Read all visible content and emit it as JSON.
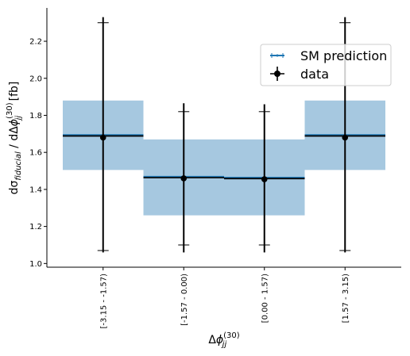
{
  "chart_data": {
    "type": "bar",
    "categories": [
      "[-3.15 - -1.57)",
      "[-1.57 - 0.00)",
      "[0.00 - 1.57)",
      "[1.57 - 3.15)"
    ],
    "series": [
      {
        "name": "SM prediction",
        "kind": "band",
        "central": [
          1.69,
          1.465,
          1.46,
          1.69
        ],
        "low": [
          1.505,
          1.26,
          1.26,
          1.505
        ],
        "high": [
          1.88,
          1.67,
          1.67,
          1.88
        ],
        "color": "#1f77b4",
        "band_color": "#a6c8e0"
      },
      {
        "name": "data",
        "kind": "points",
        "values": [
          1.68,
          1.46,
          1.455,
          1.68
        ],
        "err_low": [
          1.07,
          1.1,
          1.1,
          1.07
        ],
        "err_high": [
          2.3,
          1.82,
          1.82,
          2.3
        ],
        "err_outer_low": [
          1.06,
          1.06,
          1.06,
          1.06
        ],
        "err_outer_high": [
          2.33,
          1.865,
          1.86,
          2.33
        ],
        "color": "#000000"
      }
    ],
    "xlabel": "Δφ_jj^(30)",
    "ylabel": "dσ_fiducial / dΔφ_jj^(30) [fb]",
    "ylim": [
      0.98,
      2.38
    ],
    "yticks": [
      "1.0",
      "1.2",
      "1.4",
      "1.6",
      "1.8",
      "2.0",
      "2.2"
    ],
    "ytick_values": [
      1.0,
      1.2,
      1.4,
      1.6,
      1.8,
      2.0,
      2.2
    ],
    "grid": false,
    "legend_position": "top-right"
  }
}
